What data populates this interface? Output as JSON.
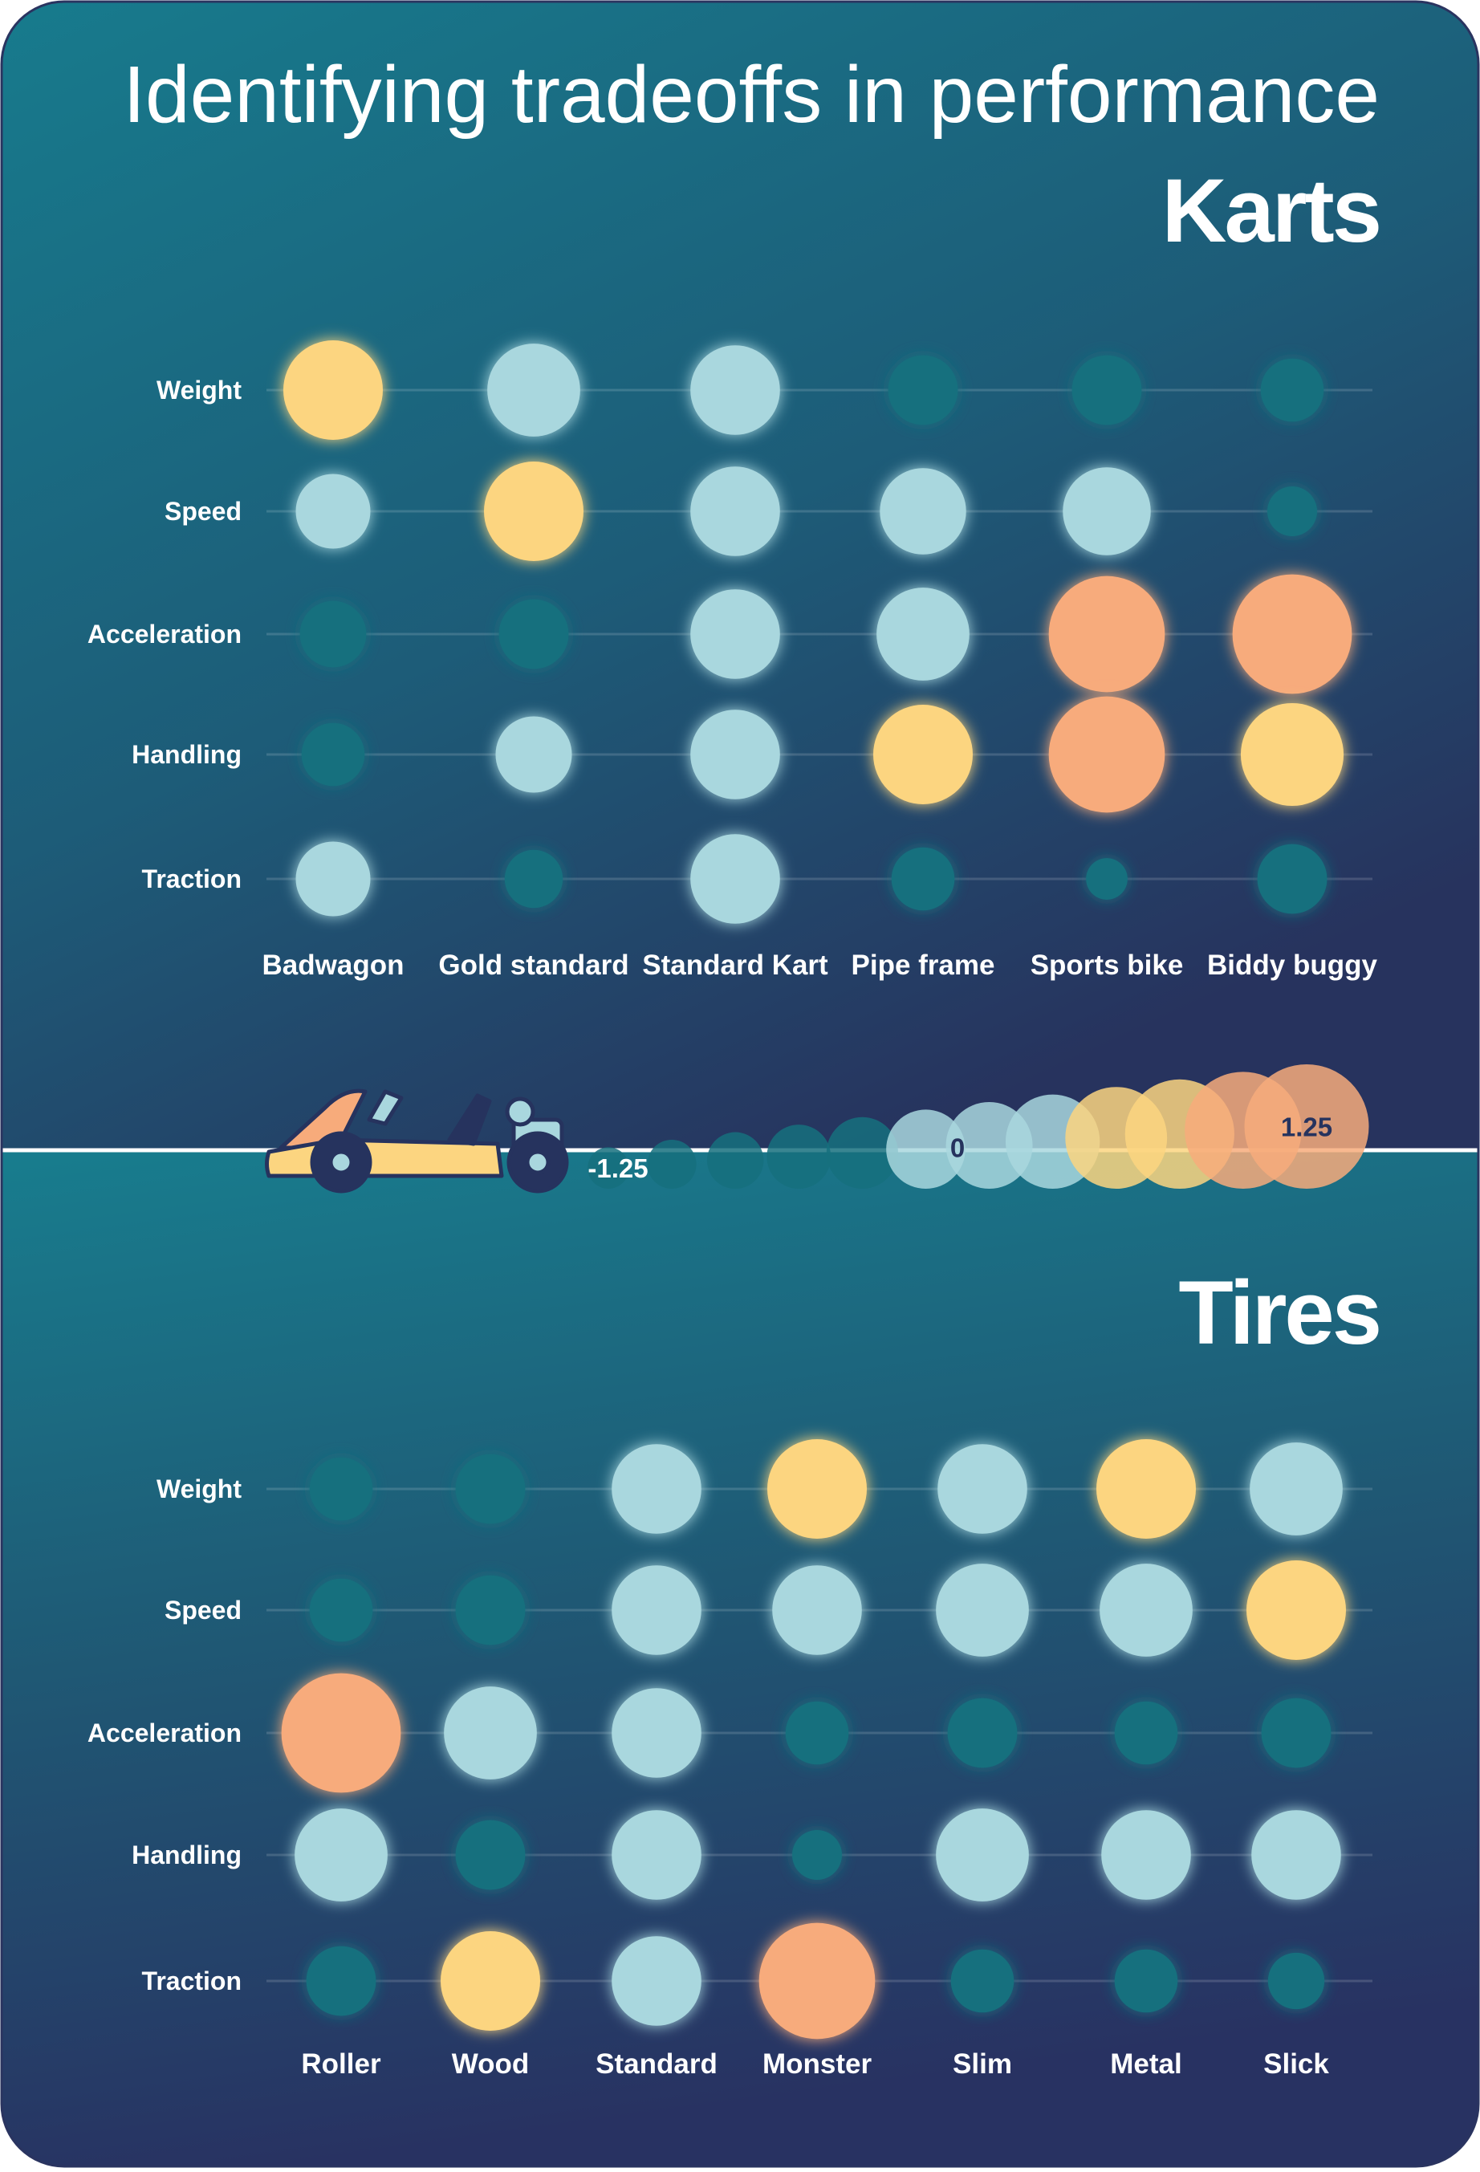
{
  "title": "Identifying tradeoffs in performance",
  "legend": {
    "range": [
      -1.25,
      1.25
    ],
    "ticks": [
      -1.25,
      0,
      1.25
    ],
    "color_steps": [
      {
        "from": -1.25,
        "color": "#16707e"
      },
      {
        "from": -0.3,
        "color": "#a9d7de"
      },
      {
        "from": 0.4,
        "color": "#fcd580"
      },
      {
        "from": 0.85,
        "color": "#f7ab7b"
      }
    ]
  },
  "chart_data": [
    {
      "type": "bubble_matrix",
      "title": "Karts",
      "rows": [
        "Weight",
        "Speed",
        "Acceleration",
        "Handling",
        "Traction"
      ],
      "columns": [
        "Badwagon",
        "Gold standard",
        "Standard Kart",
        "Pipe frame",
        "Sports bike",
        "Biddy buggy"
      ],
      "values": [
        [
          0.5,
          0.3,
          0.2,
          -0.4,
          -0.4,
          -0.6
        ],
        [
          -0.25,
          0.5,
          0.2,
          0.1,
          0.15,
          -1.0
        ],
        [
          -0.5,
          -0.4,
          0.2,
          0.3,
          1.0,
          1.1
        ],
        [
          -0.6,
          -0.2,
          0.2,
          0.5,
          1.0,
          0.6
        ],
        [
          -0.25,
          -0.75,
          0.2,
          -0.6,
          -1.25,
          -0.4
        ]
      ]
    },
    {
      "type": "bubble_matrix",
      "title": "Tires",
      "rows": [
        "Weight",
        "Speed",
        "Acceleration",
        "Handling",
        "Traction"
      ],
      "columns": [
        "Roller",
        "Wood",
        "Standard",
        "Monster",
        "Slim",
        "Metal",
        "Slick"
      ],
      "values": [
        [
          -0.6,
          -0.4,
          0.2,
          0.5,
          0.2,
          0.5,
          0.3
        ],
        [
          -0.6,
          -0.4,
          0.2,
          0.2,
          0.3,
          0.3,
          0.5
        ],
        [
          1.1,
          0.3,
          0.2,
          -0.6,
          -0.4,
          -0.6,
          -0.4
        ],
        [
          0.3,
          -0.4,
          0.2,
          -1.0,
          0.3,
          0.2,
          0.2
        ],
        [
          -0.4,
          0.5,
          0.2,
          1.0,
          -0.6,
          -0.6,
          -0.8
        ]
      ]
    }
  ]
}
